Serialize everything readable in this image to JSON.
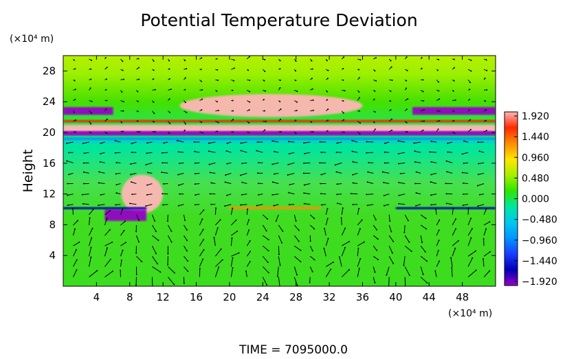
{
  "chart_data": {
    "type": "heatmap",
    "title": "Potential Temperature Deviation",
    "ylabel": "Height",
    "xunit": "(×10⁴ m)",
    "yunit": "(×10⁴ m)",
    "footer": "TIME  =  7095000.0",
    "xlim": [
      0,
      52
    ],
    "ylim": [
      0,
      30
    ],
    "xticks": [
      4,
      8,
      12,
      16,
      20,
      24,
      28,
      32,
      36,
      40,
      44,
      48
    ],
    "yticks": [
      4,
      8,
      12,
      16,
      20,
      24,
      28
    ],
    "overlay": "velocity vectors (arrows)",
    "colorbar": {
      "min": -1.92,
      "max": 1.92,
      "ticks": [
        "1.920",
        "1.440",
        "0.960",
        "0.480",
        "0.000",
        "−0.480",
        "−0.960",
        "−1.440",
        "−1.920"
      ],
      "tick_values": [
        1.92,
        1.44,
        0.96,
        0.48,
        0.0,
        -0.48,
        -0.96,
        -1.44,
        -1.92
      ],
      "colors": [
        "#ffb6b6",
        "#ff2a00",
        "#ff8c00",
        "#ffe600",
        "#a8f000",
        "#2ee600",
        "#00e6a0",
        "#00c8f0",
        "#0096ff",
        "#1a3cff",
        "#0000b4",
        "#9600c8"
      ]
    },
    "field_features": [
      {
        "x": [
          0,
          52
        ],
        "y": [
          20,
          21
        ],
        "value": 1.9
      },
      {
        "x": [
          0,
          52
        ],
        "y": [
          19.6,
          20.2
        ],
        "value": -1.9
      },
      {
        "x": [
          0,
          6
        ],
        "y": [
          22.3,
          23.3
        ],
        "value": -1.9
      },
      {
        "x": [
          42,
          52
        ],
        "y": [
          22.3,
          23.3
        ],
        "value": -1.9
      },
      {
        "x": [
          14,
          36
        ],
        "y": [
          22,
          25
        ],
        "value": 1.9
      },
      {
        "x": [
          7,
          12
        ],
        "y": [
          9.5,
          14.5
        ],
        "value": 1.9
      },
      {
        "x": [
          5,
          10
        ],
        "y": [
          8.5,
          10
        ],
        "value": -1.9
      },
      {
        "x": [
          0,
          52
        ],
        "y": [
          0,
          10
        ],
        "value": 0.1
      }
    ]
  }
}
